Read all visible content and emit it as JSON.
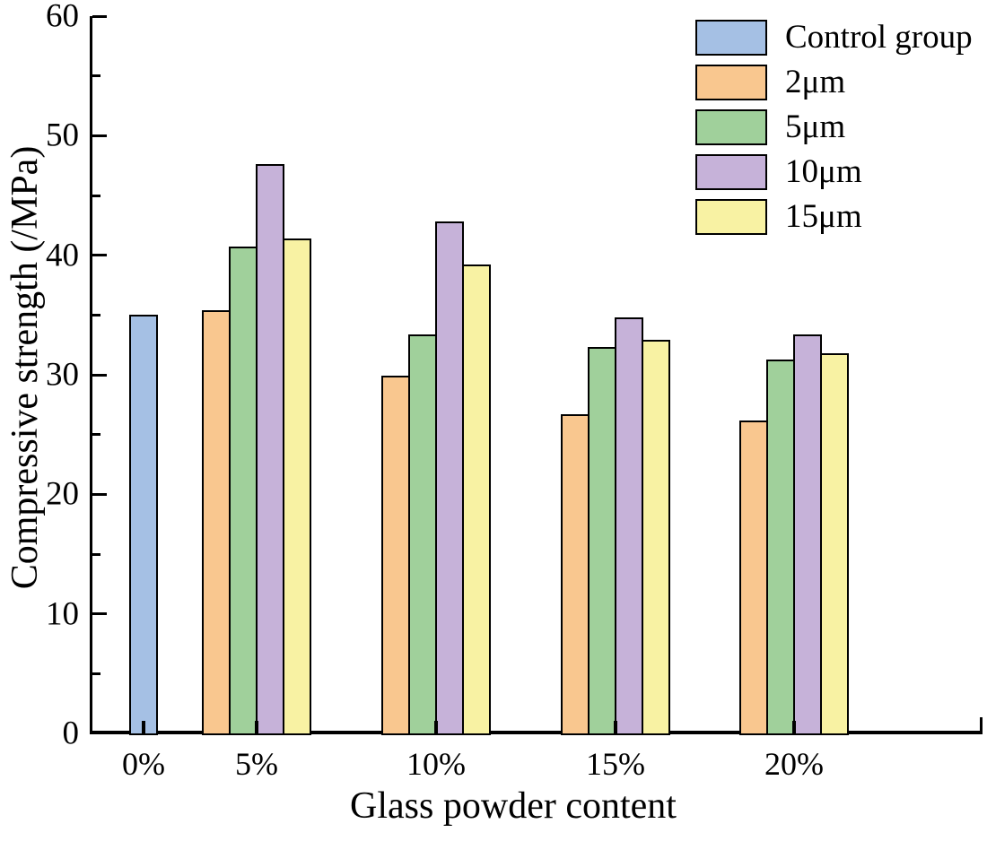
{
  "figure": {
    "background": "#ffffff",
    "text_color": "#000000"
  },
  "chart_data": {
    "type": "bar",
    "title": "",
    "xlabel": "Glass powder content",
    "ylabel": "Compressive strength (/MPa)",
    "categories": [
      "0%",
      "5%",
      "10%",
      "15%",
      "20%"
    ],
    "series": [
      {
        "name": "Control group",
        "color": "#a5c0e4",
        "values": [
          35.0,
          null,
          null,
          null,
          null
        ]
      },
      {
        "name": "2μm",
        "color": "#f9c78f",
        "values": [
          null,
          35.4,
          29.9,
          26.7,
          26.2
        ]
      },
      {
        "name": "5μm",
        "color": "#a0d09b",
        "values": [
          null,
          40.7,
          33.4,
          32.3,
          31.3
        ]
      },
      {
        "name": "10μm",
        "color": "#c6b2d9",
        "values": [
          null,
          47.6,
          42.8,
          34.8,
          33.4
        ]
      },
      {
        "name": "15μm",
        "color": "#f8f2a3",
        "values": [
          null,
          41.4,
          39.2,
          32.9,
          31.8
        ]
      }
    ],
    "ylim": [
      0,
      60
    ],
    "ytick_step": 10,
    "yminor_step": 5,
    "ytick_labels": [
      "0",
      "10",
      "20",
      "30",
      "40",
      "50",
      "60"
    ],
    "bar_border_color": "#000000",
    "legend_position": "top-right",
    "legend_entries": [
      "Control group",
      "2μm",
      "5μm",
      "10μm",
      "15μm"
    ],
    "grid": false
  }
}
